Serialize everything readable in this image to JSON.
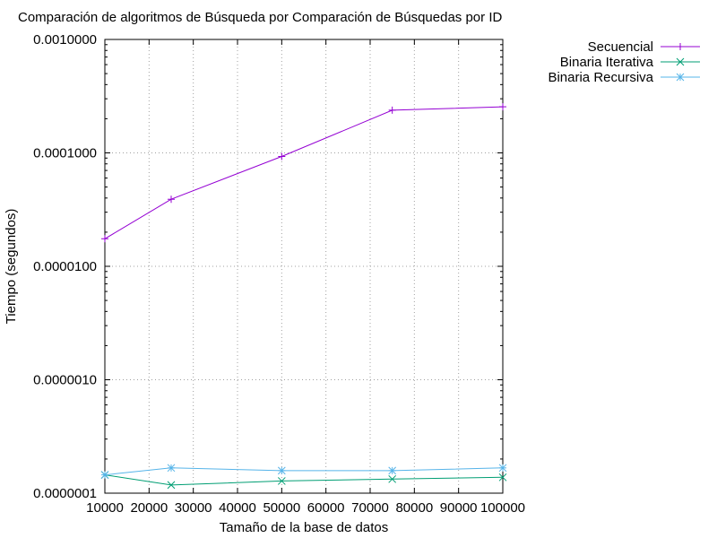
{
  "chart_data": {
    "type": "line",
    "title": "Comparación de algoritmos de Búsqueda por Comparación de Búsquedas por ID",
    "xlabel": "Tamaño de la base de datos",
    "ylabel": "Tiempo (segundos)",
    "xlim": [
      10000,
      100000
    ],
    "ylim": [
      1e-07,
      0.001
    ],
    "yscale": "log",
    "grid": true,
    "legend_position": "top-right-outside",
    "x_ticks": [
      10000,
      20000,
      30000,
      40000,
      50000,
      60000,
      70000,
      80000,
      90000,
      100000
    ],
    "x_tick_labels": [
      "10000",
      "20000",
      "30000",
      "40000",
      "50000",
      "60000",
      "70000",
      "80000",
      "90000",
      "100000"
    ],
    "y_ticks": [
      0.001,
      0.0001,
      1e-05,
      1e-06,
      1e-07
    ],
    "y_tick_labels": [
      "0.0010000",
      "0.0001000",
      "0.0000100",
      "0.0000010",
      "0.0000001"
    ],
    "series": [
      {
        "name": "Secuencial",
        "color": "#9400d3",
        "marker": "plus",
        "x": [
          10000,
          25000,
          50000,
          75000,
          100000
        ],
        "y": [
          1.75e-05,
          3.9e-05,
          9.3e-05,
          0.000238,
          0.000255
        ]
      },
      {
        "name": "Binaria Iterativa",
        "color": "#009e73",
        "marker": "cross",
        "x": [
          10000,
          25000,
          50000,
          75000,
          100000
        ],
        "y": [
          1.45e-07,
          1.18e-07,
          1.28e-07,
          1.33e-07,
          1.38e-07
        ]
      },
      {
        "name": "Binaria Recursiva",
        "color": "#56b4e9",
        "marker": "star",
        "x": [
          10000,
          25000,
          50000,
          75000,
          100000
        ],
        "y": [
          1.45e-07,
          1.67e-07,
          1.58e-07,
          1.58e-07,
          1.67e-07
        ]
      }
    ]
  }
}
